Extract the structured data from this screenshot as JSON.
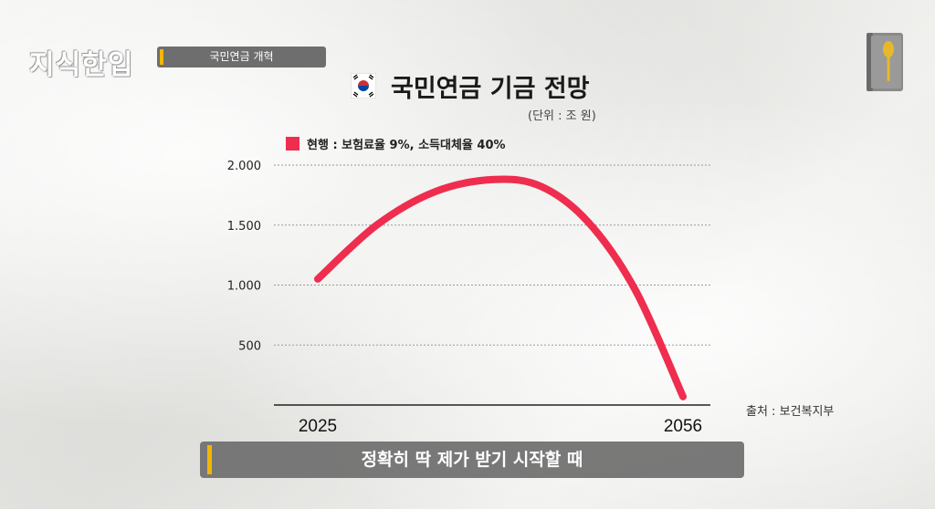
{
  "header": {
    "logo_text": "지식한입",
    "topic": "국민연금 개혁"
  },
  "icons": {
    "flag": "south-korea-flag-icon",
    "book": "book-spoon-icon"
  },
  "subtitle": "정확히 딱 제가 받기 시작할 때",
  "source": "출처 : 보건복지부",
  "colors": {
    "series": "#ef2d4e",
    "accent": "#f2b705",
    "tag_bg": "#6e6e6e"
  },
  "chart_data": {
    "type": "line",
    "title": "국민연금 기금 전망",
    "unit": "(단위 : 조 원)",
    "x_tick_labels": [
      "2025",
      "2056"
    ],
    "y_ticks": [
      500,
      1000,
      1500,
      2000
    ],
    "y_tick_labels": [
      "500",
      "1.000",
      "1.500",
      "2.000"
    ],
    "ylim": [
      0,
      2000
    ],
    "xlim": [
      2025,
      2056
    ],
    "grid": true,
    "legend_position": "top-left",
    "series": [
      {
        "name": "현행 : 보험료율 9%, 소득대체율 40%",
        "x": [
          2025,
          2030,
          2035,
          2040,
          2044,
          2048,
          2052,
          2056
        ],
        "y": [
          1050,
          1500,
          1780,
          1880,
          1820,
          1520,
          950,
          70
        ]
      }
    ]
  }
}
